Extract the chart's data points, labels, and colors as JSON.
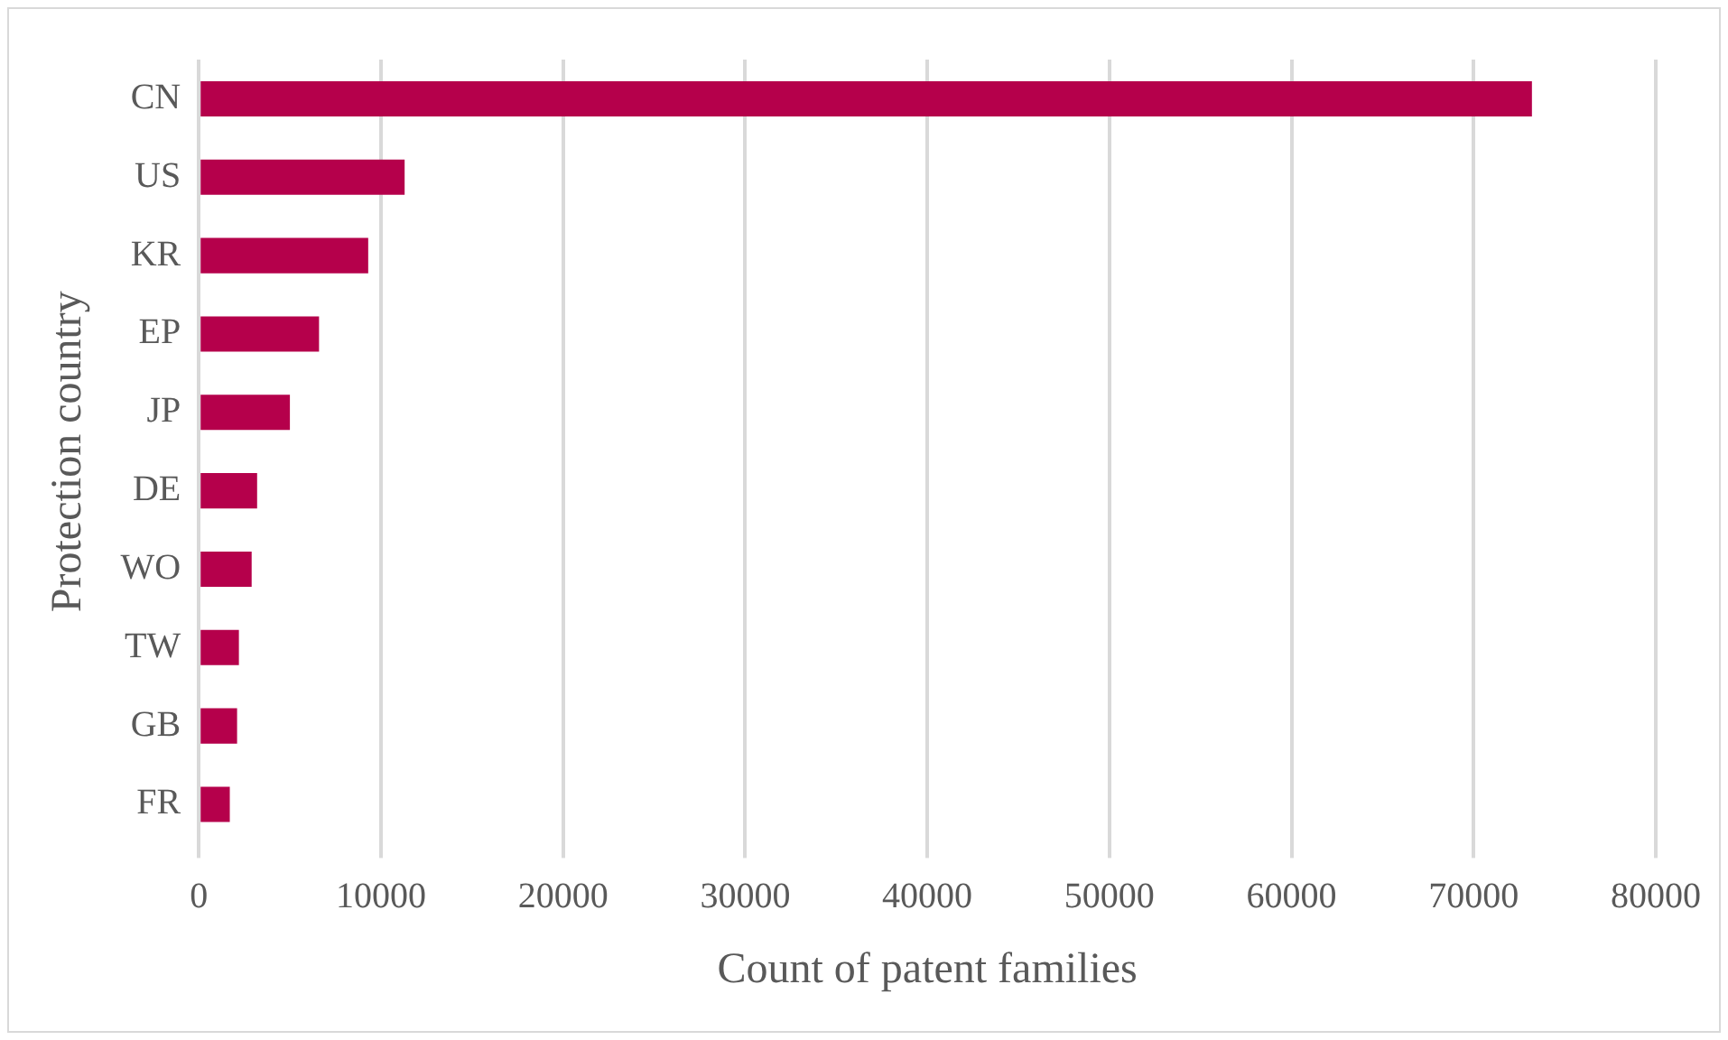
{
  "chart_data": {
    "type": "bar",
    "orientation": "horizontal",
    "xlabel": "Count of patent families",
    "ylabel": "Protection country",
    "categories": [
      "CN",
      "US",
      "KR",
      "EP",
      "JP",
      "DE",
      "WO",
      "TW",
      "GB",
      "FR"
    ],
    "values": [
      73200,
      11300,
      9300,
      6600,
      5000,
      3200,
      2900,
      2200,
      2100,
      1700
    ],
    "color": "#b5004b",
    "xlim": [
      0,
      80000
    ],
    "xticks": [
      0,
      10000,
      20000,
      30000,
      40000,
      50000,
      60000,
      70000,
      80000
    ],
    "grid": "x",
    "legend": false
  }
}
